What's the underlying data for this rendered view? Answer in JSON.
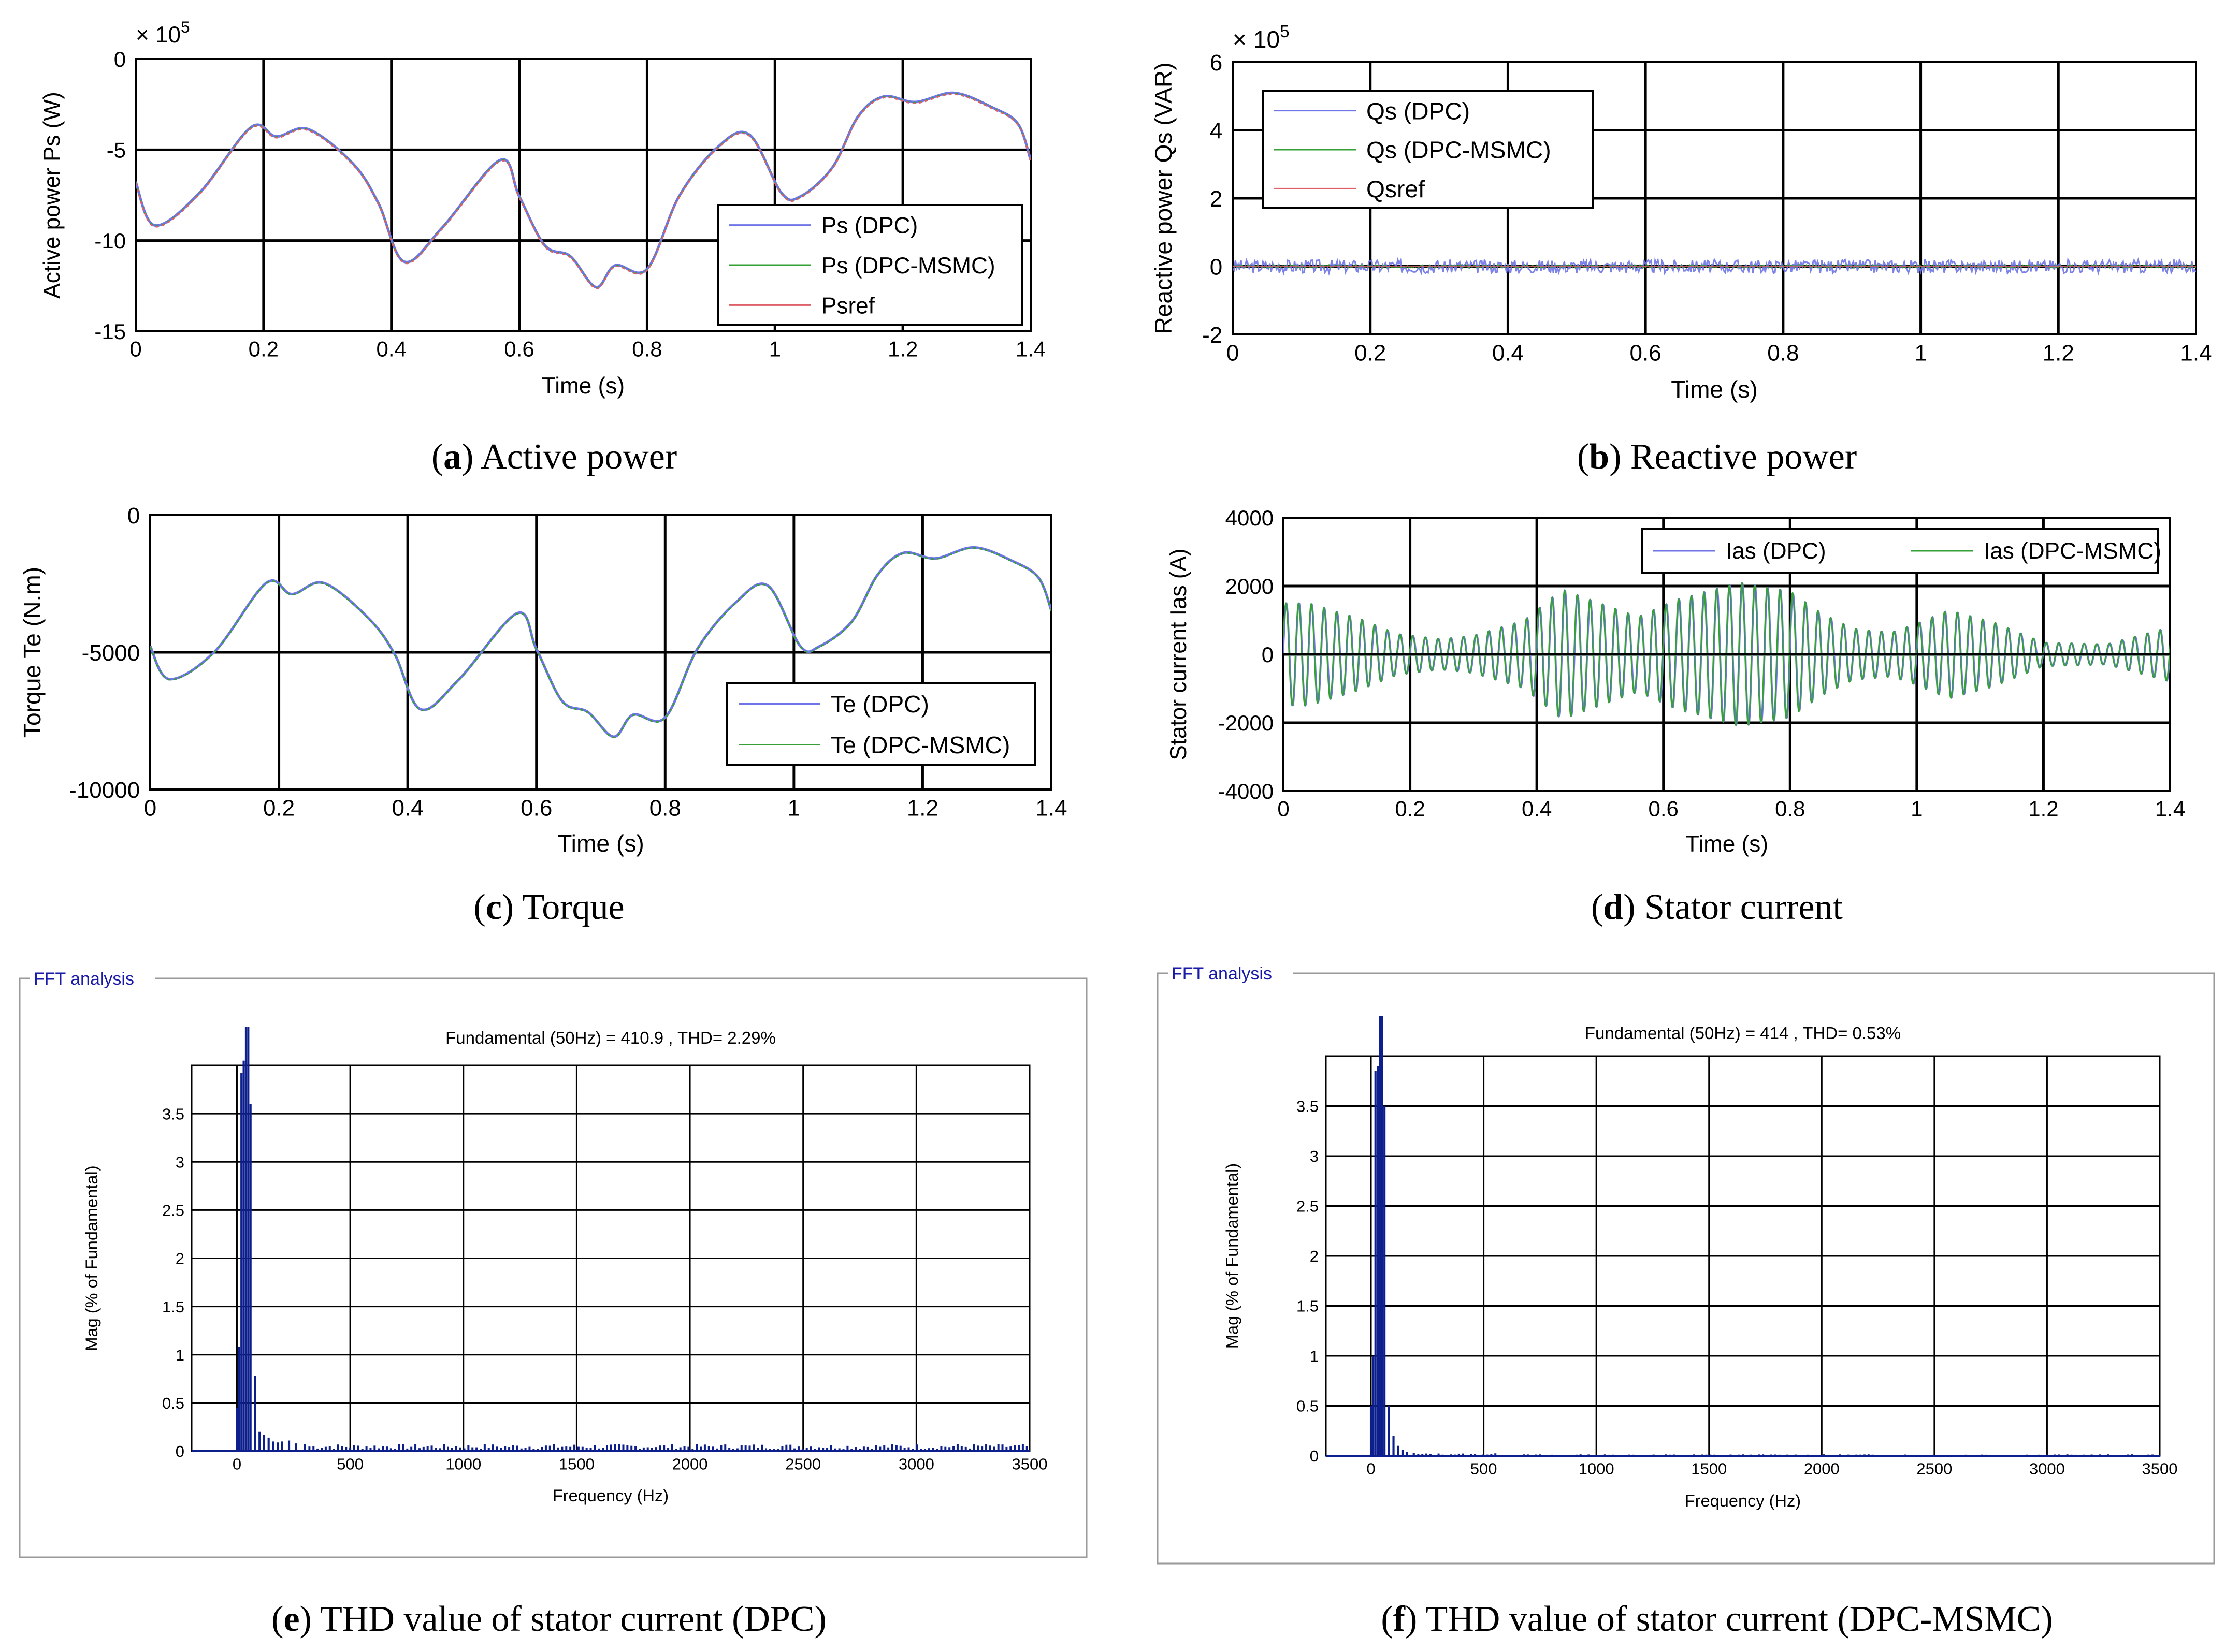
{
  "chart_data": [
    {
      "id": "a",
      "type": "line",
      "caption_letter": "(a)",
      "caption_text": " Active power",
      "xlabel": "Time (s)",
      "ylabel": "Active power Ps (W)",
      "exponent_label": "× 10",
      "exponent_power": "5",
      "xlim": [
        0,
        1.4
      ],
      "ylim": [
        -15,
        0
      ],
      "xticks": [
        0,
        0.2,
        0.4,
        0.6,
        0.8,
        1,
        1.2,
        1.4
      ],
      "xtick_labels": [
        "0",
        "0.2",
        "0.4",
        "0.6",
        "0.8",
        "1",
        "1.2",
        "1.4"
      ],
      "yticks": [
        0,
        -5,
        -10,
        -15
      ],
      "ytick_labels": [
        "0",
        "-5",
        "-10",
        "-15"
      ],
      "legend": [
        "Ps (DPC)",
        "Ps (DPC-MSMC)",
        "Psref"
      ],
      "legend_position": "bottom-right",
      "grid": true,
      "x": [
        0,
        0.03,
        0.1,
        0.18,
        0.22,
        0.27,
        0.34,
        0.38,
        0.42,
        0.48,
        0.57,
        0.6,
        0.64,
        0.68,
        0.72,
        0.75,
        0.8,
        0.85,
        0.91,
        0.96,
        1.01,
        1.04,
        1.09,
        1.13,
        1.17,
        1.22,
        1.28,
        1.34,
        1.38,
        1.4
      ],
      "series": [
        {
          "name": "Ps (DPC)",
          "color": "#6f74e6",
          "values": [
            -6.8,
            -9.2,
            -7.4,
            -3.8,
            -4.3,
            -3.9,
            -5.8,
            -8.0,
            -11.2,
            -9.3,
            -5.6,
            -7.6,
            -10.3,
            -10.9,
            -12.6,
            -11.4,
            -11.6,
            -7.6,
            -4.9,
            -4.2,
            -7.4,
            -7.6,
            -6.0,
            -3.2,
            -2.1,
            -2.4,
            -1.9,
            -2.7,
            -3.6,
            -5.6
          ]
        },
        {
          "name": "Ps (DPC-MSMC)",
          "color": "#35a035",
          "values": [
            -6.8,
            -9.2,
            -7.4,
            -3.8,
            -4.3,
            -3.9,
            -5.8,
            -8.0,
            -11.2,
            -9.3,
            -5.6,
            -7.6,
            -10.3,
            -10.9,
            -12.6,
            -11.4,
            -11.6,
            -7.6,
            -4.9,
            -4.2,
            -7.4,
            -7.6,
            -6.0,
            -3.2,
            -2.1,
            -2.4,
            -1.9,
            -2.7,
            -3.6,
            -5.6
          ]
        },
        {
          "name": "Psref",
          "color": "#e0606a",
          "values": [
            -6.8,
            -9.2,
            -7.4,
            -3.8,
            -4.3,
            -3.9,
            -5.8,
            -8.0,
            -11.2,
            -9.3,
            -5.6,
            -7.6,
            -10.3,
            -10.9,
            -12.6,
            -11.4,
            -11.6,
            -7.6,
            -4.9,
            -4.2,
            -7.4,
            -7.6,
            -6.0,
            -3.2,
            -2.1,
            -2.4,
            -1.9,
            -2.7,
            -3.6,
            -5.6
          ]
        }
      ]
    },
    {
      "id": "b",
      "type": "line",
      "caption_letter": "(b)",
      "caption_text": " Reactive power",
      "xlabel": "Time (s)",
      "ylabel": "Reactive power Qs (VAR)",
      "exponent_label": "× 10",
      "exponent_power": "5",
      "xlim": [
        0,
        1.4
      ],
      "ylim": [
        -2,
        6
      ],
      "xticks": [
        0,
        0.2,
        0.4,
        0.6,
        0.8,
        1,
        1.2,
        1.4
      ],
      "xtick_labels": [
        "0",
        "0.2",
        "0.4",
        "0.6",
        "0.8",
        "1",
        "1.2",
        "1.4"
      ],
      "yticks": [
        6,
        4,
        2,
        0,
        -2
      ],
      "ytick_labels": [
        "6",
        "4",
        "2",
        "0",
        "-2"
      ],
      "legend": [
        "Qs (DPC)",
        "Qs (DPC-MSMC)",
        "Qsref"
      ],
      "legend_position": "top-left",
      "grid": true,
      "x": [
        0,
        1.4
      ],
      "series": [
        {
          "name": "Qs (DPC)",
          "color": "#6f74e6",
          "values": [
            0,
            0
          ],
          "ripple": 0.2
        },
        {
          "name": "Qs (DPC-MSMC)",
          "color": "#35a035",
          "values": [
            0,
            0
          ],
          "ripple": 0.05
        },
        {
          "name": "Qsref",
          "color": "#e0606a",
          "values": [
            0,
            0
          ]
        }
      ]
    },
    {
      "id": "c",
      "type": "line",
      "caption_letter": "(c)",
      "caption_text": " Torque",
      "xlabel": "Time (s)",
      "ylabel": "Torque Te (N.m)",
      "xlim": [
        0,
        1.4
      ],
      "ylim": [
        -10000,
        0
      ],
      "xticks": [
        0,
        0.2,
        0.4,
        0.6,
        0.8,
        1,
        1.2,
        1.4
      ],
      "xtick_labels": [
        "0",
        "0.2",
        "0.4",
        "0.6",
        "0.8",
        "1",
        "1.2",
        "1.4"
      ],
      "yticks": [
        0,
        -5000,
        -10000
      ],
      "ytick_labels": [
        "0",
        "-5000",
        "-10000"
      ],
      "legend": [
        "Te (DPC)",
        "Te (DPC-MSMC)"
      ],
      "legend_position": "bottom-right",
      "grid": true,
      "x": [
        0,
        0.03,
        0.1,
        0.18,
        0.22,
        0.27,
        0.34,
        0.38,
        0.42,
        0.48,
        0.57,
        0.6,
        0.64,
        0.68,
        0.72,
        0.75,
        0.8,
        0.85,
        0.91,
        0.96,
        1.01,
        1.04,
        1.09,
        1.13,
        1.17,
        1.22,
        1.28,
        1.34,
        1.38,
        1.4
      ],
      "series": [
        {
          "name": "Te (DPC)",
          "color": "#6f74e6",
          "values": [
            -4800,
            -6000,
            -5000,
            -2500,
            -2900,
            -2500,
            -3800,
            -5100,
            -7100,
            -6000,
            -3600,
            -4900,
            -6800,
            -7200,
            -8100,
            -7300,
            -7400,
            -4900,
            -3200,
            -2600,
            -4800,
            -4800,
            -3900,
            -2200,
            -1400,
            -1600,
            -1200,
            -1700,
            -2300,
            -3500
          ]
        },
        {
          "name": "Te (DPC-MSMC)",
          "color": "#35a035",
          "values": [
            -4800,
            -6000,
            -5000,
            -2500,
            -2900,
            -2500,
            -3800,
            -5100,
            -7100,
            -6000,
            -3600,
            -4900,
            -6800,
            -7200,
            -8100,
            -7300,
            -7400,
            -4900,
            -3200,
            -2600,
            -4800,
            -4800,
            -3900,
            -2200,
            -1400,
            -1600,
            -1200,
            -1700,
            -2300,
            -3500
          ]
        }
      ]
    },
    {
      "id": "d",
      "type": "line",
      "caption_letter": "(d)",
      "caption_text": " Stator current",
      "xlabel": "Time (s)",
      "ylabel": "Stator current Ias (A)",
      "xlim": [
        0,
        1.4
      ],
      "ylim": [
        -4000,
        4000
      ],
      "xticks": [
        0,
        0.2,
        0.4,
        0.6,
        0.8,
        1,
        1.2,
        1.4
      ],
      "xtick_labels": [
        "0",
        "0.2",
        "0.4",
        "0.6",
        "0.8",
        "1",
        "1.2",
        "1.4"
      ],
      "yticks": [
        4000,
        2000,
        0,
        -2000,
        -4000
      ],
      "ytick_labels": [
        "4000",
        "2000",
        "0",
        "-2000",
        "-4000"
      ],
      "legend": [
        "Ias (DPC)",
        "Ias (DPC-MSMC)"
      ],
      "legend_position": "top-right",
      "grid": true,
      "frequency_hz": 50,
      "envelope_x": [
        0,
        0.04,
        0.12,
        0.18,
        0.25,
        0.3,
        0.38,
        0.44,
        0.5,
        0.56,
        0.62,
        0.72,
        0.8,
        0.85,
        0.9,
        0.96,
        1.0,
        1.05,
        1.12,
        1.2,
        1.3,
        1.4
      ],
      "envelope_amplitude": [
        1500,
        1500,
        1050,
        600,
        450,
        550,
        1000,
        1900,
        1500,
        1100,
        1600,
        2100,
        1850,
        1200,
        750,
        650,
        900,
        1300,
        950,
        350,
        300,
        800
      ],
      "series": [
        {
          "name": "Ias (DPC)",
          "color": "#6f74e6"
        },
        {
          "name": "Ias (DPC-MSMC)",
          "color": "#35a035"
        }
      ]
    },
    {
      "id": "e",
      "type": "bar",
      "caption_letter": "(e)",
      "caption_text": " THD value of stator current (DPC)",
      "panel_title": "FFT analysis",
      "title": "Fundamental (50Hz) = 410.9 , THD= 2.29%",
      "xlabel": "Frequency (Hz)",
      "ylabel": "Mag (% of Fundamental)",
      "xlim": [
        -200,
        3500
      ],
      "ylim": [
        0,
        4
      ],
      "xticks": [
        0,
        500,
        1000,
        1500,
        2000,
        2500,
        3000,
        3500
      ],
      "xtick_labels": [
        "0",
        "500",
        "1000",
        "1500",
        "2000",
        "2500",
        "3000",
        "3500"
      ],
      "yticks": [
        0,
        0.5,
        1,
        1.5,
        2,
        2.5,
        3,
        3.5
      ],
      "ytick_labels": [
        "0",
        "0.5",
        "1",
        "1.5",
        "2",
        "2.5",
        "3",
        "3.5"
      ],
      "grid": true,
      "bar_color": "#0d1f8c",
      "bars": [
        [
          0,
          0.45
        ],
        [
          10,
          1.08
        ],
        [
          20,
          3.92
        ],
        [
          30,
          4.05
        ],
        [
          40,
          4.4
        ],
        [
          50,
          4.4
        ],
        [
          60,
          3.6
        ],
        [
          80,
          0.78
        ],
        [
          100,
          0.2
        ],
        [
          120,
          0.17
        ],
        [
          140,
          0.14
        ],
        [
          160,
          0.1
        ],
        [
          180,
          0.09
        ],
        [
          200,
          0.1
        ],
        [
          230,
          0.11
        ],
        [
          260,
          0.08
        ],
        [
          300,
          0.07
        ]
      ],
      "noise_level": 0.06
    },
    {
      "id": "f",
      "type": "bar",
      "caption_letter": "(f)",
      "caption_text": " THD value of stator current (DPC-MSMC)",
      "panel_title": "FFT analysis",
      "title": "Fundamental (50Hz) = 414 , THD= 0.53%",
      "xlabel": "Frequency (Hz)",
      "ylabel": "Mag (% of Fundamental)",
      "xlim": [
        -200,
        3500
      ],
      "ylim": [
        0,
        4
      ],
      "xticks": [
        0,
        500,
        1000,
        1500,
        2000,
        2500,
        3000,
        3500
      ],
      "xtick_labels": [
        "0",
        "500",
        "1000",
        "1500",
        "2000",
        "2500",
        "3000",
        "3500"
      ],
      "yticks": [
        0,
        0.5,
        1,
        1.5,
        2,
        2.5,
        3,
        3.5
      ],
      "ytick_labels": [
        "0",
        "0.5",
        "1",
        "1.5",
        "2",
        "2.5",
        "3",
        "3.5"
      ],
      "grid": true,
      "bar_color": "#0d1f8c",
      "bars": [
        [
          0,
          0.5
        ],
        [
          10,
          1.0
        ],
        [
          20,
          3.85
        ],
        [
          30,
          3.9
        ],
        [
          40,
          4.4
        ],
        [
          50,
          4.4
        ],
        [
          60,
          3.5
        ],
        [
          80,
          0.5
        ],
        [
          100,
          0.2
        ],
        [
          120,
          0.1
        ],
        [
          140,
          0.06
        ],
        [
          160,
          0.04
        ],
        [
          190,
          0.03
        ]
      ],
      "noise_level": 0.02
    }
  ]
}
